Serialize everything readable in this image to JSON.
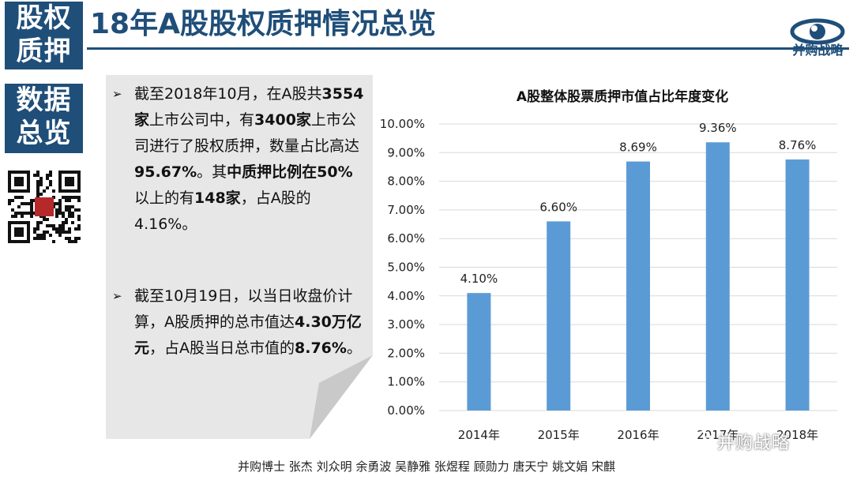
{
  "sidebar": {
    "badge1": [
      "股权",
      "质押"
    ],
    "badge2": [
      "数据",
      "总览"
    ]
  },
  "title": "18年A股股权质押情况总览",
  "logo": {
    "text": "并购战略",
    "stamp": "并购战略"
  },
  "bullets": [
    {
      "marker": "➢",
      "parts": [
        {
          "text": "截至2018年10月，在A股共",
          "bold": false
        },
        {
          "text": "3554家",
          "bold": true
        },
        {
          "text": "上市公司中，有",
          "bold": false
        },
        {
          "text": "3400家",
          "bold": true
        },
        {
          "text": "上市公司进行了股权质押，数量占比高达",
          "bold": false
        },
        {
          "text": "95.67%",
          "bold": true
        },
        {
          "text": "。其",
          "bold": false
        },
        {
          "text": "中质押比例在50%",
          "bold": true
        },
        {
          "text": "以上的有",
          "bold": false
        },
        {
          "text": "148家",
          "bold": true
        },
        {
          "text": "，占A股的4.16%。",
          "bold": false
        }
      ]
    },
    {
      "marker": "➢",
      "parts": [
        {
          "text": "截至10月19日，以当日收盘价计算，A股质押的总市值达",
          "bold": false
        },
        {
          "text": "4.30万亿元",
          "bold": true
        },
        {
          "text": "，占A股当日总市值的",
          "bold": false
        },
        {
          "text": "8.76%",
          "bold": true
        },
        {
          "text": "。",
          "bold": false
        }
      ]
    }
  ],
  "chart_data": {
    "type": "bar",
    "title": "A股整体股票质押市值占比年度变化",
    "categories": [
      "2014年",
      "2015年",
      "2016年",
      "2017年",
      "2018年"
    ],
    "values": [
      4.1,
      6.6,
      8.69,
      9.36,
      8.76
    ],
    "labels": [
      "4.10%",
      "6.60%",
      "8.69%",
      "9.36%",
      "8.76%"
    ],
    "ylim": [
      0,
      10
    ],
    "yticks": [
      "0.00%",
      "1.00%",
      "2.00%",
      "3.00%",
      "4.00%",
      "5.00%",
      "6.00%",
      "7.00%",
      "8.00%",
      "9.00%",
      "10.00%"
    ],
    "grid": true,
    "bar_color": "#5b9bd5"
  },
  "footer": "并购博士 张杰 刘众明 余勇波 吴静雅 张煜程  顾勋力 唐天宁 姚文娟 宋麒",
  "watermark": "并购战略"
}
